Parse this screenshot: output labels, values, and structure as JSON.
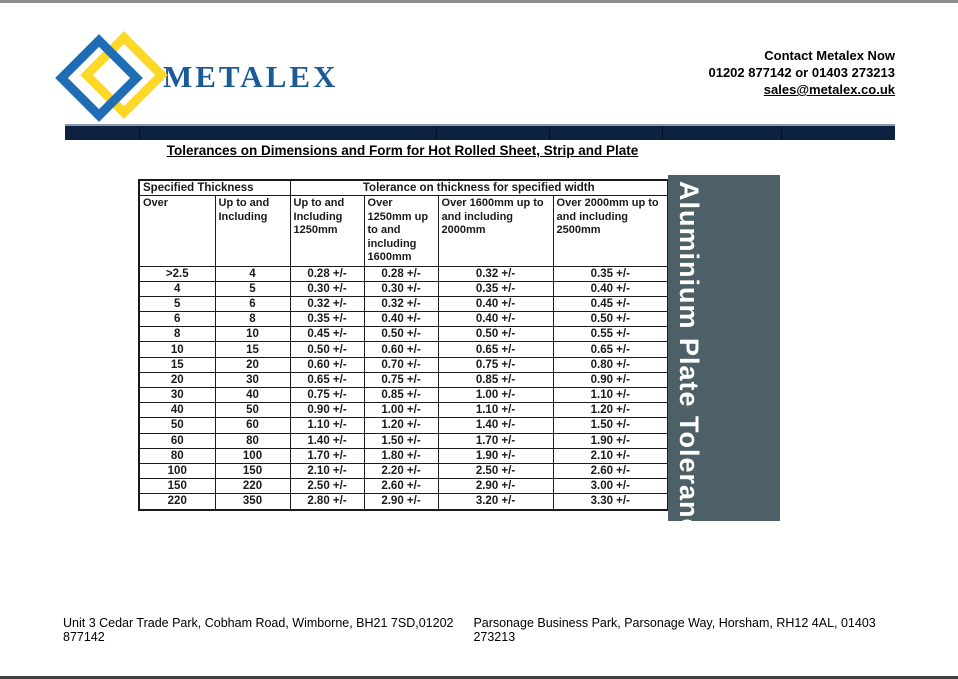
{
  "header": {
    "logo_text": "METALEX",
    "contact": {
      "line1": "Contact Metalex Now",
      "line2": "01202 877142 or 01403 273213",
      "email": "sales@metalex.co.uk"
    }
  },
  "title": "Tolerances on Dimensions and Form for Hot Rolled Sheet, Strip and Plate",
  "table": {
    "header_row1": [
      "Specified Thickness",
      "Tolerance on thickness for specified width"
    ],
    "columns": [
      "Over",
      "Up to and Including",
      "Up to and Including 1250mm",
      "Over 1250mm up to and including 1600mm",
      "Over 1600mm up to and including 2000mm",
      "Over 2000mm up to and including 2500mm"
    ],
    "rows": [
      [
        ">2.5",
        "4",
        "0.28 +/-",
        "0.28 +/-",
        "0.32 +/-",
        "0.35 +/-"
      ],
      [
        "4",
        "5",
        "0.30 +/-",
        "0.30 +/-",
        "0.35 +/-",
        "0.40 +/-"
      ],
      [
        "5",
        "6",
        "0.32 +/-",
        "0.32 +/-",
        "0.40 +/-",
        "0.45 +/-"
      ],
      [
        "6",
        "8",
        "0.35 +/-",
        "0.40 +/-",
        "0.40 +/-",
        "0.50 +/-"
      ],
      [
        "8",
        "10",
        "0.45 +/-",
        "0.50 +/-",
        "0.50 +/-",
        "0.55 +/-"
      ],
      [
        "10",
        "15",
        "0.50 +/-",
        "0.60 +/-",
        "0.65 +/-",
        "0.65 +/-"
      ],
      [
        "15",
        "20",
        "0.60 +/-",
        "0.70 +/-",
        "0.75 +/-",
        "0.80 +/-"
      ],
      [
        "20",
        "30",
        "0.65 +/-",
        "0.75 +/-",
        "0.85 +/-",
        "0.90 +/-"
      ],
      [
        "30",
        "40",
        "0.75 +/-",
        "0.85 +/-",
        "1.00 +/-",
        "1.10 +/-"
      ],
      [
        "40",
        "50",
        "0.90 +/-",
        "1.00 +/-",
        "1.10 +/-",
        "1.20 +/-"
      ],
      [
        "50",
        "60",
        "1.10 +/-",
        "1.20 +/-",
        "1.40 +/-",
        "1.50 +/-"
      ],
      [
        "60",
        "80",
        "1.40 +/-",
        "1.50 +/-",
        "1.70 +/-",
        "1.90 +/-"
      ],
      [
        "80",
        "100",
        "1.70 +/-",
        "1.80 +/-",
        "1.90 +/-",
        "2.10 +/-"
      ],
      [
        "100",
        "150",
        "2.10 +/-",
        "2.20 +/-",
        "2.50 +/-",
        "2.60 +/-"
      ],
      [
        "150",
        "220",
        "2.50 +/-",
        "2.60 +/-",
        "2.90 +/-",
        "3.00 +/-"
      ],
      [
        "220",
        "350",
        "2.80 +/-",
        "2.90 +/-",
        "3.20 +/-",
        "3.30 +/-"
      ]
    ]
  },
  "sidebar": {
    "label": "Aluminium Plate Tolerances"
  },
  "footer": {
    "left": "Unit 3 Cedar Trade Park, Cobham Road, Wimborne, BH21 7SD,01202 877142",
    "right": "Parsonage Business Park, Parsonage Way, Horsham, RH12 4AL, 01403 273213"
  },
  "colors": {
    "brand_blue": "#1f6eb5",
    "brand_yellow": "#fdd826",
    "logo_text_blue": "#1a5a96",
    "navy_bar": "#0d2140",
    "banner_slate": "#4e6067"
  }
}
